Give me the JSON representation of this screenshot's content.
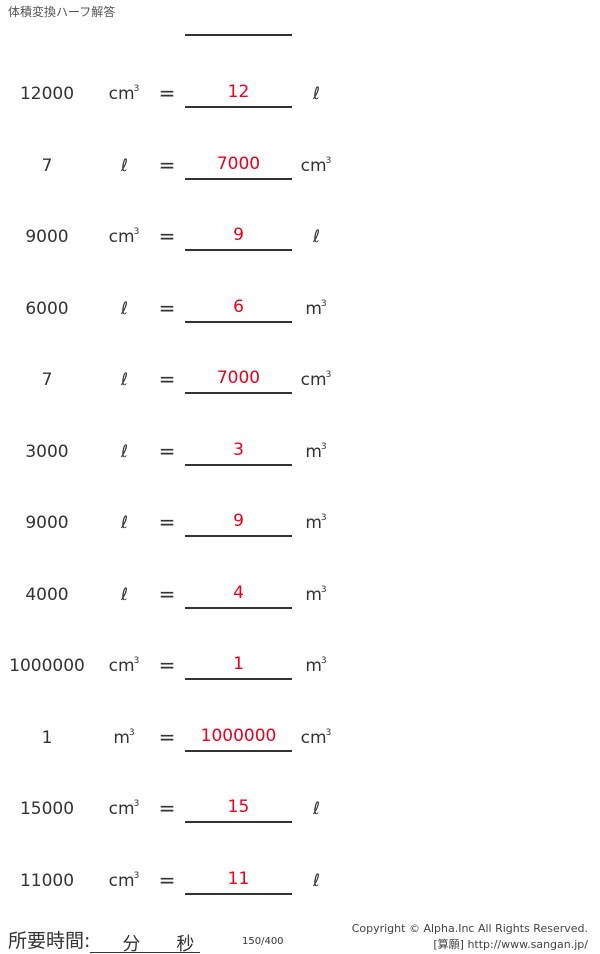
{
  "header": {
    "title": "体積変換ハーフ解答"
  },
  "rows": [
    {
      "value": "12000",
      "from_unit": "cm",
      "from_sup": "3",
      "equals": "=",
      "answer": "12",
      "to_unit": "ℓ",
      "to_sup": ""
    },
    {
      "value": "7",
      "from_unit": "ℓ",
      "from_sup": "",
      "equals": "=",
      "answer": "7000",
      "to_unit": "cm",
      "to_sup": "3"
    },
    {
      "value": "9000",
      "from_unit": "cm",
      "from_sup": "3",
      "equals": "=",
      "answer": "9",
      "to_unit": "ℓ",
      "to_sup": ""
    },
    {
      "value": "6000",
      "from_unit": "ℓ",
      "from_sup": "",
      "equals": "=",
      "answer": "6",
      "to_unit": "m",
      "to_sup": "3"
    },
    {
      "value": "7",
      "from_unit": "ℓ",
      "from_sup": "",
      "equals": "=",
      "answer": "7000",
      "to_unit": "cm",
      "to_sup": "3"
    },
    {
      "value": "3000",
      "from_unit": "ℓ",
      "from_sup": "",
      "equals": "=",
      "answer": "3",
      "to_unit": "m",
      "to_sup": "3"
    },
    {
      "value": "9000",
      "from_unit": "ℓ",
      "from_sup": "",
      "equals": "=",
      "answer": "9",
      "to_unit": "m",
      "to_sup": "3"
    },
    {
      "value": "4000",
      "from_unit": "ℓ",
      "from_sup": "",
      "equals": "=",
      "answer": "4",
      "to_unit": "m",
      "to_sup": "3"
    },
    {
      "value": "1000000",
      "from_unit": "cm",
      "from_sup": "3",
      "equals": "=",
      "answer": "1",
      "to_unit": "m",
      "to_sup": "3"
    },
    {
      "value": "1",
      "from_unit": "m",
      "from_sup": "3",
      "equals": "=",
      "answer": "1000000",
      "to_unit": "cm",
      "to_sup": "3"
    },
    {
      "value": "15000",
      "from_unit": "cm",
      "from_sup": "3",
      "equals": "=",
      "answer": "15",
      "to_unit": "ℓ",
      "to_sup": ""
    },
    {
      "value": "11000",
      "from_unit": "cm",
      "from_sup": "3",
      "equals": "=",
      "answer": "11",
      "to_unit": "ℓ",
      "to_sup": ""
    }
  ],
  "footer": {
    "time_label": "所要時間:",
    "minutes": "分",
    "seconds": "秒",
    "page": "150/400",
    "copyright": "Copyright © Alpha.Inc All Rights Reserved.",
    "site": "[算願] http://www.sangan.jp/"
  },
  "colors": {
    "answer": "#e8001c",
    "text": "#333333"
  }
}
